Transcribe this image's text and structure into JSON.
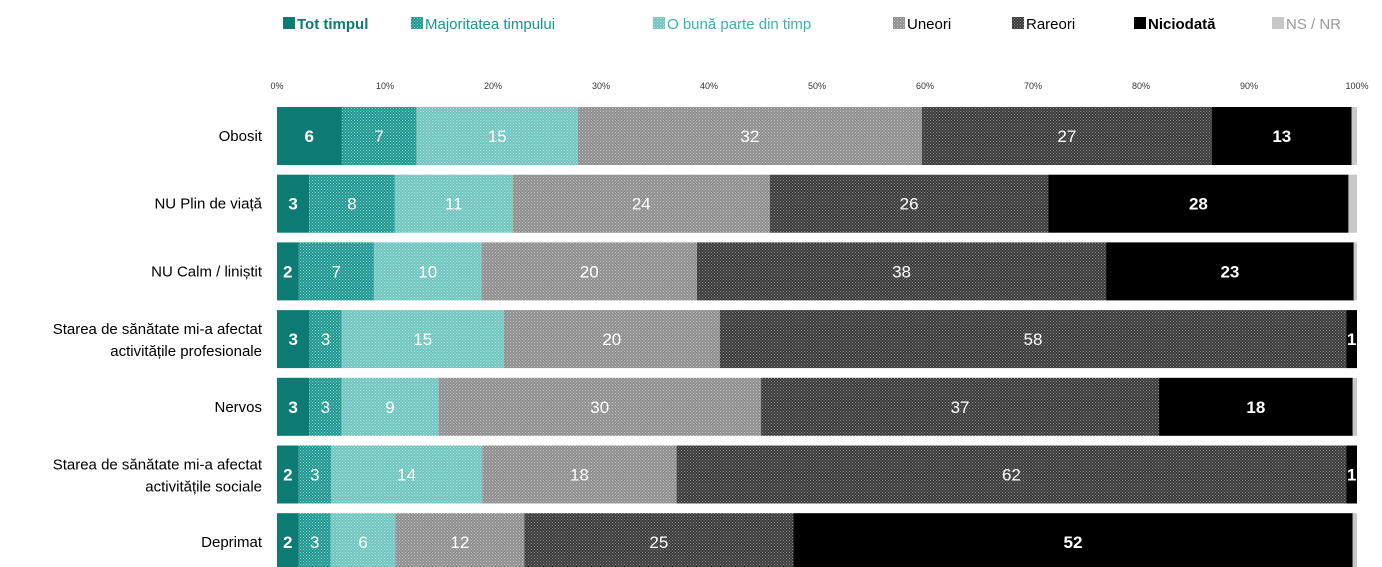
{
  "chart_data": {
    "type": "bar",
    "orientation": "horizontal",
    "stacked": true,
    "percent_scale": true,
    "categories": [
      "Obosit",
      "NU Plin de viață",
      "NU Calm / liniștit",
      "Starea de sănătate mi-a afectat activitățile profesionale",
      "Nervos",
      "Starea de sănătate mi-a afectat activitățile sociale",
      "Deprimat"
    ],
    "category_lines": [
      [
        "Obosit"
      ],
      [
        "NU Plin de viață"
      ],
      [
        "NU Calm / liniștit"
      ],
      [
        "Starea de sănătate mi-a afectat",
        "activitățile profesionale"
      ],
      [
        "Nervos"
      ],
      [
        "Starea de sănătate mi-a afectat",
        "activitățile sociale"
      ],
      [
        "Deprimat"
      ]
    ],
    "series": [
      {
        "name": "Tot timpul",
        "values": [
          6,
          3,
          2,
          3,
          3,
          2,
          2
        ],
        "color": "#0e7a74",
        "pattern": "solid",
        "label_color": "#ffffff",
        "bold": true
      },
      {
        "name": "Majoritatea timpului",
        "values": [
          7,
          8,
          7,
          3,
          3,
          3,
          3
        ],
        "color": "#1a968e",
        "pattern": "dots-dense",
        "label_color": "#ffffff",
        "bold": false
      },
      {
        "name": "O bună parte din timp",
        "values": [
          15,
          11,
          10,
          15,
          9,
          14,
          6
        ],
        "color": "#6cc4be",
        "pattern": "dots-light",
        "label_color": "#ffffff",
        "bold": false
      },
      {
        "name": "Uneori",
        "values": [
          32,
          24,
          20,
          20,
          30,
          18,
          12
        ],
        "color": "#8c8c8c",
        "pattern": "dots-grey",
        "label_color": "#ffffff",
        "bold": false
      },
      {
        "name": "Rareori",
        "values": [
          27,
          26,
          38,
          58,
          37,
          62,
          25
        ],
        "color": "#3a3a3a",
        "pattern": "dots-dark",
        "label_color": "#ffffff",
        "bold": false
      },
      {
        "name": "Niciodată",
        "values": [
          13,
          28,
          23,
          1,
          18,
          1,
          52
        ],
        "color": "#000000",
        "pattern": "solid",
        "label_color": "#ffffff",
        "bold": true
      },
      {
        "name": "NS / NR",
        "values": [
          0.5,
          0.8,
          0.3,
          0,
          0.4,
          0,
          0.4
        ],
        "color": "#c8c8c8",
        "pattern": "solid",
        "label_color": "#ffffff",
        "bold": false
      }
    ],
    "legend_text_colors": [
      "#0e7a74",
      "#1a968e",
      "#3fb2aa",
      "#000000",
      "#000000",
      "#000000",
      "#9a9a9a"
    ],
    "legend_bold": [
      true,
      false,
      false,
      false,
      false,
      true,
      false
    ],
    "xlim": [
      0,
      100
    ],
    "x_ticks": [
      "0%",
      "10%",
      "20%",
      "30%",
      "40%",
      "50%",
      "60%",
      "70%",
      "80%",
      "90%",
      "100%"
    ],
    "legend_position": "top",
    "grid": false,
    "title": "",
    "xlabel": "",
    "ylabel": ""
  }
}
